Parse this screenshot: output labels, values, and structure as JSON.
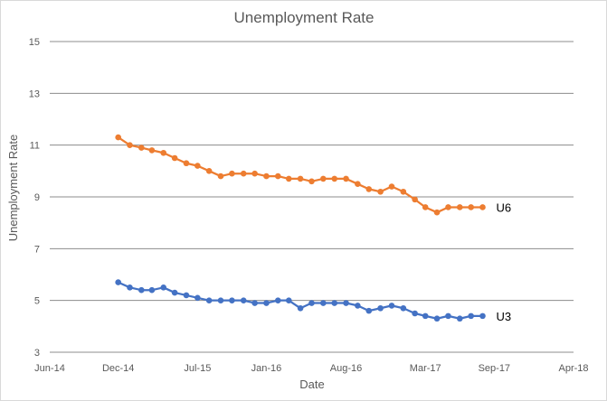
{
  "chart_data": {
    "type": "line",
    "title": "Unemployment Rate",
    "xlabel": "Date",
    "ylabel": "Unemployment Rate",
    "ylim": [
      3,
      15
    ],
    "yticks": [
      3,
      5,
      7,
      9,
      11,
      13,
      15
    ],
    "x_domain": [
      "2014-06-01",
      "2018-04-01"
    ],
    "xtick_labels": [
      "Jun-14",
      "Dec-14",
      "Jul-15",
      "Jan-16",
      "Aug-16",
      "Mar-17",
      "Sep-17",
      "Apr-18"
    ],
    "xtick_dates": [
      "2014-06-01",
      "2014-12-01",
      "2015-07-01",
      "2016-01-01",
      "2016-08-01",
      "2017-03-01",
      "2017-09-01",
      "2018-04-01"
    ],
    "grid": true,
    "legend": "none",
    "x": [
      "2014-12-01",
      "2015-01-01",
      "2015-02-01",
      "2015-03-01",
      "2015-04-01",
      "2015-05-01",
      "2015-06-01",
      "2015-07-01",
      "2015-08-01",
      "2015-09-01",
      "2015-10-01",
      "2015-11-01",
      "2015-12-01",
      "2016-01-01",
      "2016-02-01",
      "2016-03-01",
      "2016-04-01",
      "2016-05-01",
      "2016-06-01",
      "2016-07-01",
      "2016-08-01",
      "2016-09-01",
      "2016-10-01",
      "2016-11-01",
      "2016-12-01",
      "2017-01-01",
      "2017-02-01",
      "2017-03-01",
      "2017-04-01",
      "2017-05-01",
      "2017-06-01",
      "2017-07-01",
      "2017-08-01"
    ],
    "series": [
      {
        "name": "U6",
        "color": "#ed7d31",
        "values": [
          11.3,
          11.0,
          10.9,
          10.8,
          10.7,
          10.5,
          10.3,
          10.2,
          10.0,
          9.8,
          9.9,
          9.9,
          9.9,
          9.8,
          9.8,
          9.7,
          9.7,
          9.6,
          9.7,
          9.7,
          9.7,
          9.5,
          9.3,
          9.2,
          9.4,
          9.2,
          8.9,
          8.6,
          8.4,
          8.6,
          8.6,
          8.6,
          8.6
        ]
      },
      {
        "name": "U3",
        "color": "#4472c4",
        "values": [
          5.7,
          5.5,
          5.4,
          5.4,
          5.5,
          5.3,
          5.2,
          5.1,
          5.0,
          5.0,
          5.0,
          5.0,
          4.9,
          4.9,
          5.0,
          5.0,
          4.7,
          4.9,
          4.9,
          4.9,
          4.9,
          4.8,
          4.6,
          4.7,
          4.8,
          4.7,
          4.5,
          4.4,
          4.3,
          4.4,
          4.3,
          4.4,
          4.4
        ]
      }
    ]
  }
}
